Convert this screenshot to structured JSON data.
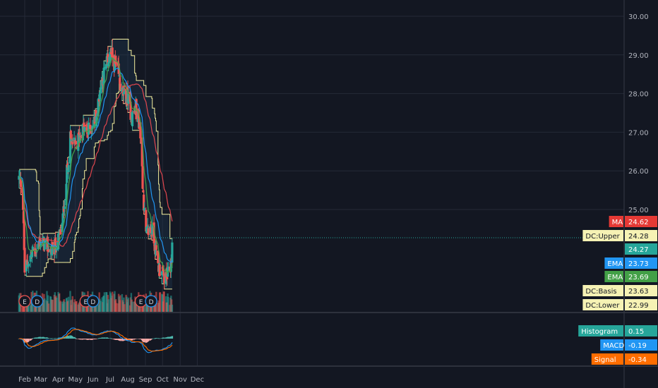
{
  "colors": {
    "background": "#131722",
    "grid": "#252a37",
    "up": "#26a69a",
    "down": "#ef5350",
    "ma": "#e0464e",
    "ema_fast": "#43a047",
    "ema_slow": "#2196f3",
    "donchian": "#f5f0a0",
    "macd": "#2196f3",
    "signal": "#ff6d00",
    "text": "#b2b5be"
  },
  "chart_data": {
    "type": "candlestick",
    "x_axis": {
      "type": "date",
      "tick_labels": [
        "Feb",
        "Mar",
        "Apr",
        "May",
        "Jun",
        "Jul",
        "Aug",
        "Sep",
        "Oct",
        "Nov",
        "Dec"
      ]
    },
    "y_axis": {
      "range": [
        22.4,
        30.2
      ],
      "tick_labels": [
        "25.00",
        "26.00",
        "27.00",
        "28.00",
        "29.00",
        "30.00"
      ],
      "tick_values": [
        25,
        26,
        27,
        28,
        29,
        30
      ]
    },
    "price_path": [
      [
        "Jan 22",
        25.8
      ],
      [
        "Jan 28",
        25.6
      ],
      [
        "Feb 1",
        23.4
      ],
      [
        "Feb 8",
        23.7
      ],
      [
        "Feb 15",
        23.9
      ],
      [
        "Feb 22",
        24.0
      ],
      [
        "Mar 1",
        24.2
      ],
      [
        "Mar 8",
        24.1
      ],
      [
        "Mar 15",
        24.0
      ],
      [
        "Mar 22",
        23.9
      ],
      [
        "Apr 1",
        24.2
      ],
      [
        "Apr 8",
        24.6
      ],
      [
        "Apr 15",
        25.8
      ],
      [
        "Apr 22",
        26.8
      ],
      [
        "May 1",
        26.6
      ],
      [
        "May 8",
        26.9
      ],
      [
        "May 15",
        27.1
      ],
      [
        "May 22",
        27.0
      ],
      [
        "Jun 1",
        27.2
      ],
      [
        "Jun 8",
        27.5
      ],
      [
        "Jun 15",
        28.3
      ],
      [
        "Jun 22",
        28.6
      ],
      [
        "Jul 1",
        29.1
      ],
      [
        "Jul 8",
        28.8
      ],
      [
        "Jul 15",
        28.5
      ],
      [
        "Jul 22",
        28.0
      ],
      [
        "Aug 1",
        27.9
      ],
      [
        "Aug 8",
        27.4
      ],
      [
        "Aug 15",
        27.6
      ],
      [
        "Aug 22",
        27.2
      ],
      [
        "Sep 1",
        24.3
      ],
      [
        "Sep 8",
        24.5
      ],
      [
        "Sep 15",
        24.4
      ],
      [
        "Sep 22",
        23.6
      ],
      [
        "Oct 1",
        23.3
      ],
      [
        "Oct 8",
        23.2
      ],
      [
        "Oct 15",
        23.5
      ],
      [
        "Oct 20",
        24.27
      ]
    ],
    "events": [
      {
        "date": "Feb 1",
        "label": "E"
      },
      {
        "date": "Feb 23",
        "label": "D"
      },
      {
        "date": "May 19",
        "label": "E"
      },
      {
        "date": "Jun 1",
        "label": "D"
      },
      {
        "date": "Aug 24",
        "label": "E"
      },
      {
        "date": "Sep 11",
        "label": "D"
      }
    ],
    "price_labels": [
      {
        "name": "MA",
        "value": 24.62
      },
      {
        "name": "DC:Upper",
        "value": 24.28
      },
      {
        "name": "",
        "value": 24.27
      },
      {
        "name": "EMA",
        "value": 23.73
      },
      {
        "name": "EMA",
        "value": 23.69
      },
      {
        "name": "DC:Basis",
        "value": 23.63
      },
      {
        "name": "DC:Lower",
        "value": 22.99
      }
    ],
    "macd_labels": [
      {
        "name": "Histogram",
        "value": 0.15
      },
      {
        "name": "MACD",
        "value": -0.19
      },
      {
        "name": "Signal",
        "value": -0.34
      }
    ]
  }
}
